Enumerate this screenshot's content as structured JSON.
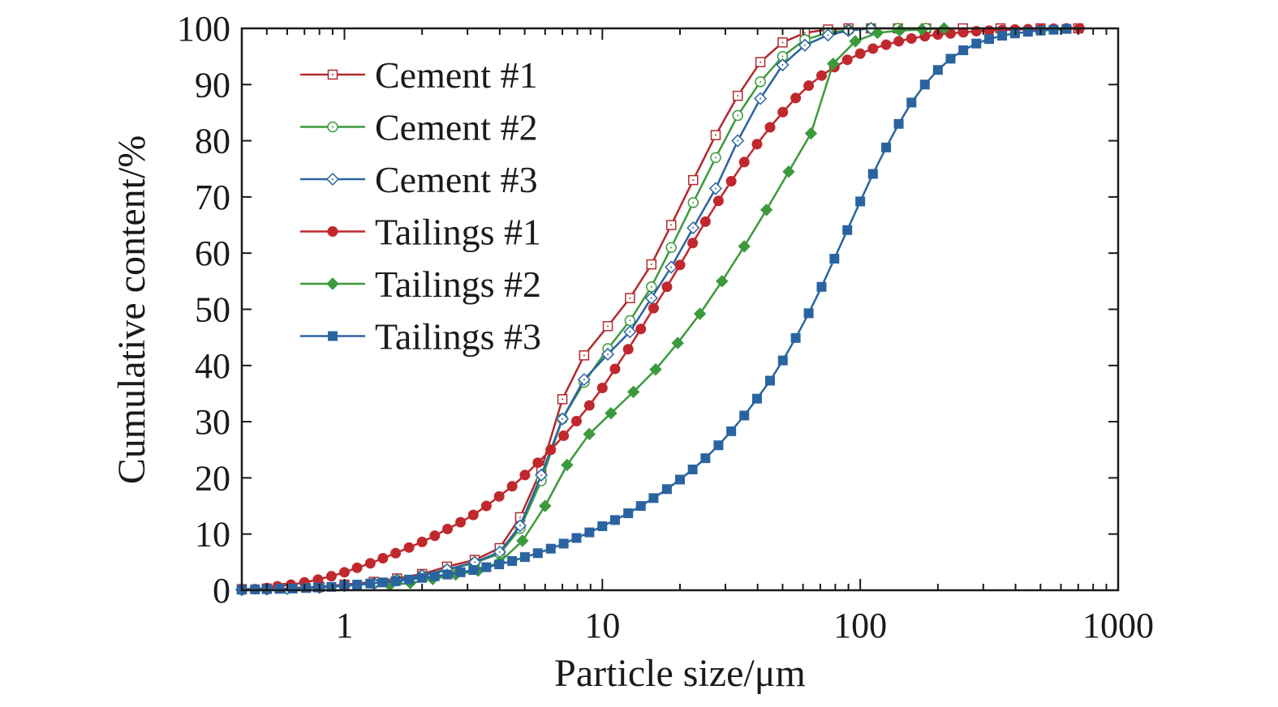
{
  "chart_data": {
    "type": "line",
    "xlabel": "Particle size/μm",
    "ylabel": "Cumulative content/%",
    "xscale": "log",
    "xlim": [
      0.4,
      1000
    ],
    "ylim": [
      0,
      100
    ],
    "x_ticks": [
      {
        "value": 1,
        "label": "1"
      },
      {
        "value": 10,
        "label": "10"
      },
      {
        "value": 100,
        "label": "100"
      },
      {
        "value": 1000,
        "label": "1000"
      }
    ],
    "y_ticks": [
      {
        "value": 0,
        "label": "0"
      },
      {
        "value": 10,
        "label": "10"
      },
      {
        "value": 20,
        "label": "20"
      },
      {
        "value": 30,
        "label": "30"
      },
      {
        "value": 40,
        "label": "40"
      },
      {
        "value": 50,
        "label": "50"
      },
      {
        "value": 60,
        "label": "60"
      },
      {
        "value": 70,
        "label": "70"
      },
      {
        "value": 80,
        "label": "80"
      },
      {
        "value": 90,
        "label": "90"
      },
      {
        "value": 100,
        "label": "100"
      }
    ],
    "grid": false,
    "legend_position": "top-left",
    "series": [
      {
        "name": "Cement #1",
        "color": "#b22a2e",
        "marker": "square",
        "filled": false,
        "x": [
          0.4,
          0.5,
          0.6,
          0.8,
          1.0,
          1.3,
          1.6,
          2.0,
          2.5,
          3.2,
          4.0,
          4.8,
          5.8,
          7.0,
          8.5,
          10.5,
          12.8,
          15.5,
          18.5,
          22.5,
          27.5,
          33.5,
          41.0,
          50.0,
          61.0,
          75.0,
          90.0,
          110,
          140,
          180,
          250,
          350,
          500,
          700
        ],
        "y": [
          0.2,
          0.3,
          0.4,
          0.6,
          1.0,
          1.5,
          2.1,
          2.9,
          4.2,
          5.4,
          7.5,
          13.0,
          21.5,
          34.0,
          41.8,
          47.0,
          52.0,
          58.0,
          65.0,
          73.0,
          81.0,
          88.0,
          94.0,
          97.5,
          99.2,
          99.8,
          100,
          100,
          100,
          100,
          100,
          100,
          100,
          100
        ]
      },
      {
        "name": "Cement #2",
        "color": "#3c9a3c",
        "marker": "circle",
        "filled": false,
        "x": [
          0.4,
          0.5,
          0.6,
          0.8,
          1.0,
          1.3,
          1.6,
          2.0,
          2.5,
          3.2,
          4.0,
          4.8,
          5.8,
          7.0,
          8.5,
          10.5,
          12.8,
          15.5,
          18.5,
          22.5,
          27.5,
          33.5,
          41.0,
          50.0,
          61.0,
          75.0,
          90.0,
          110,
          140,
          180
        ],
        "y": [
          0.1,
          0.2,
          0.3,
          0.5,
          0.8,
          1.2,
          1.8,
          2.6,
          3.6,
          4.9,
          6.5,
          11.0,
          19.5,
          30.5,
          37.0,
          43.0,
          48.0,
          54.0,
          61.0,
          69.0,
          77.0,
          84.5,
          90.5,
          95.0,
          98.0,
          99.2,
          99.7,
          100,
          100,
          100
        ]
      },
      {
        "name": "Cement #3",
        "color": "#2a64a0",
        "marker": "diamond",
        "filled": false,
        "x": [
          0.4,
          0.5,
          0.6,
          0.8,
          1.0,
          1.3,
          1.6,
          2.0,
          2.5,
          3.2,
          4.0,
          4.8,
          5.8,
          7.0,
          8.5,
          10.5,
          12.8,
          15.5,
          18.5,
          22.5,
          27.5,
          33.5,
          41.0,
          50.0,
          61.0,
          75.0,
          90.0,
          110
        ],
        "y": [
          0.1,
          0.2,
          0.3,
          0.5,
          0.8,
          1.2,
          1.8,
          2.6,
          3.7,
          5.0,
          6.8,
          11.5,
          20.5,
          30.5,
          37.5,
          42.0,
          46.0,
          52.0,
          57.5,
          64.5,
          71.5,
          80.0,
          87.5,
          93.5,
          97.0,
          98.8,
          99.6,
          100
        ]
      },
      {
        "name": "Tailings #1",
        "color": "#c0282e",
        "marker": "circle",
        "filled": true,
        "x": [
          0.45,
          0.5,
          0.55,
          0.62,
          0.7,
          0.79,
          0.89,
          1.0,
          1.12,
          1.26,
          1.41,
          1.58,
          1.78,
          2.0,
          2.24,
          2.51,
          2.82,
          3.16,
          3.55,
          3.98,
          4.47,
          5.01,
          5.62,
          6.31,
          7.08,
          7.94,
          8.91,
          10.0,
          11.2,
          12.6,
          14.1,
          15.8,
          17.8,
          20.0,
          22.4,
          25.1,
          28.2,
          31.6,
          35.5,
          39.8,
          44.7,
          50.1,
          56.2,
          63.1,
          70.8,
          79.4,
          89.1,
          100,
          112,
          126,
          141,
          158,
          178,
          200,
          224,
          251,
          282,
          316,
          355,
          398,
          447,
          501,
          562,
          631,
          708
        ],
        "y": [
          0.2,
          0.4,
          0.7,
          1.0,
          1.4,
          1.9,
          2.5,
          3.2,
          4.0,
          4.8,
          5.7,
          6.6,
          7.6,
          8.6,
          9.7,
          10.9,
          12.1,
          13.4,
          15.0,
          16.7,
          18.5,
          20.5,
          22.7,
          25.0,
          27.5,
          30.1,
          32.9,
          36.0,
          39.4,
          42.9,
          46.5,
          50.2,
          54.0,
          57.9,
          61.8,
          65.6,
          69.3,
          72.8,
          76.2,
          79.4,
          82.4,
          85.1,
          87.6,
          89.8,
          91.6,
          93.1,
          94.4,
          95.5,
          96.4,
          97.1,
          97.7,
          98.2,
          98.6,
          98.9,
          99.1,
          99.3,
          99.5,
          99.6,
          99.7,
          99.8,
          99.85,
          99.9,
          99.95,
          100,
          100
        ]
      },
      {
        "name": "Tailings #2",
        "color": "#3c9a3c",
        "marker": "diamond",
        "filled": true,
        "x": [
          1.5,
          1.8,
          2.2,
          2.7,
          3.3,
          4.0,
          4.9,
          6.0,
          7.3,
          8.9,
          10.8,
          13.2,
          16.1,
          19.6,
          23.9,
          29.1,
          35.5,
          43.3,
          52.8,
          64.4,
          78.5,
          95.7,
          116.7,
          142.2,
          173.4,
          211.4
        ],
        "y": [
          0.9,
          1.3,
          2.0,
          2.8,
          3.5,
          5.0,
          8.8,
          15.0,
          22.3,
          27.8,
          31.5,
          35.3,
          39.3,
          44.0,
          49.2,
          55.0,
          61.2,
          67.7,
          74.5,
          81.3,
          93.7,
          97.7,
          99.2,
          99.6,
          99.8,
          100
        ]
      },
      {
        "name": "Tailings #3",
        "color": "#2a64a0",
        "marker": "square",
        "filled": true,
        "x": [
          0.4,
          0.45,
          0.5,
          0.56,
          0.63,
          0.71,
          0.79,
          0.89,
          1.0,
          1.12,
          1.26,
          1.41,
          1.58,
          1.78,
          2.0,
          2.24,
          2.51,
          2.82,
          3.16,
          3.55,
          3.98,
          4.47,
          5.01,
          5.62,
          6.31,
          7.08,
          7.94,
          8.91,
          10.0,
          11.2,
          12.6,
          14.1,
          15.8,
          17.8,
          20.0,
          22.4,
          25.1,
          28.2,
          31.6,
          35.5,
          39.8,
          44.7,
          50.1,
          56.2,
          63.1,
          70.8,
          79.4,
          89.1,
          100,
          112,
          126,
          141,
          158,
          178,
          200,
          224,
          251,
          282,
          316,
          355,
          398,
          447,
          501,
          562,
          631
        ],
        "y": [
          0.1,
          0.15,
          0.2,
          0.25,
          0.3,
          0.4,
          0.5,
          0.6,
          0.8,
          1.0,
          1.2,
          1.4,
          1.6,
          1.9,
          2.2,
          2.5,
          2.8,
          3.2,
          3.6,
          4.1,
          4.6,
          5.2,
          5.9,
          6.6,
          7.4,
          8.3,
          9.3,
          10.3,
          11.4,
          12.5,
          13.7,
          15.0,
          16.4,
          18.0,
          19.7,
          21.5,
          23.5,
          25.8,
          28.3,
          31.1,
          34.1,
          37.3,
          40.9,
          44.9,
          49.3,
          54.0,
          59.0,
          64.1,
          69.2,
          74.1,
          78.8,
          83.0,
          86.8,
          90.0,
          92.6,
          94.6,
          96.1,
          97.3,
          98.1,
          98.7,
          99.1,
          99.4,
          99.6,
          99.75,
          99.9
        ]
      }
    ]
  }
}
